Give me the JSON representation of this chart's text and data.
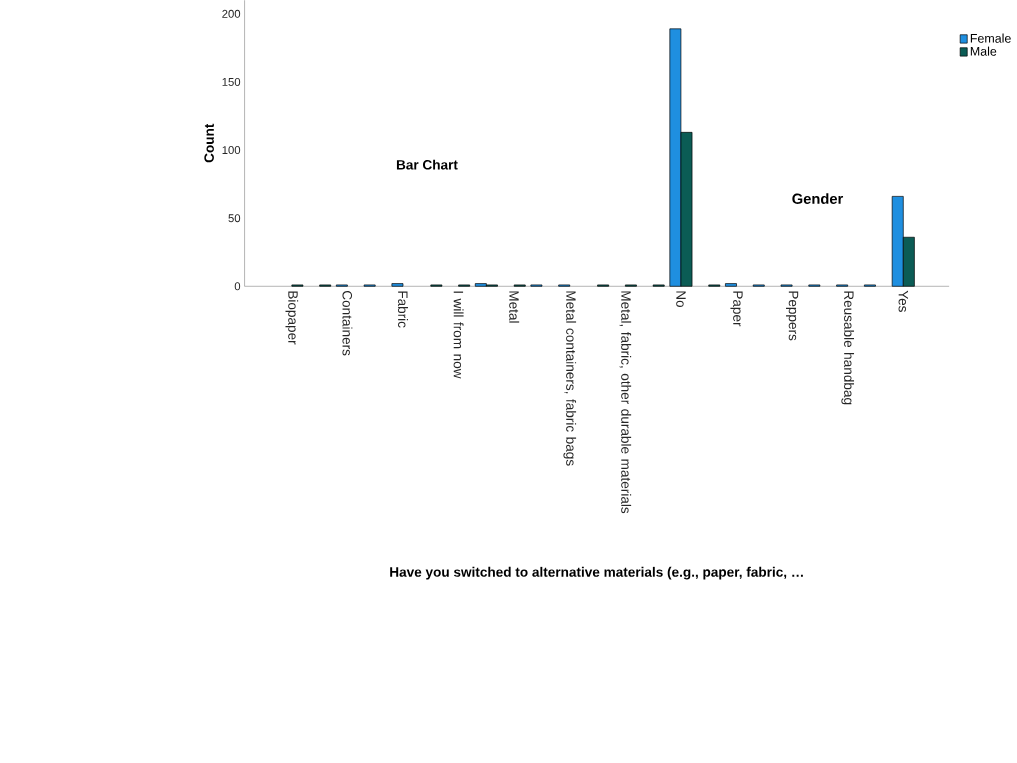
{
  "chart_data": {
    "type": "bar",
    "title": "Bar Chart",
    "xlabel": "Have you switched to alternative materials (e.g., paper, fabric, …",
    "ylabel": "Count",
    "legend_title": "Gender",
    "categories": [
      "Biopaper",
      null,
      "Containers",
      null,
      "Fabric",
      null,
      "I will from now",
      null,
      "Metal",
      null,
      "Metal containers, fabric bags",
      null,
      "Metal, fabric, other durable materials",
      null,
      "No",
      null,
      "Paper",
      null,
      "Peppers",
      null,
      "Reusable handbag",
      null,
      "Yes"
    ],
    "series": [
      {
        "name": "Female",
        "color": "#1f8fe0",
        "values": [
          null,
          null,
          1,
          1,
          2,
          null,
          null,
          2,
          null,
          1,
          1,
          null,
          null,
          null,
          189,
          null,
          2,
          1,
          1,
          1,
          1,
          1,
          66
        ]
      },
      {
        "name": "Male",
        "color": "#0b5c55",
        "values": [
          1,
          1,
          null,
          null,
          null,
          1,
          1,
          1,
          1,
          null,
          null,
          1,
          1,
          1,
          113,
          1,
          null,
          null,
          null,
          null,
          null,
          null,
          36
        ]
      }
    ],
    "ylim": [
      0,
      210
    ],
    "yticks": [
      0,
      50,
      100,
      150,
      200
    ],
    "grid": false,
    "legend": "top right"
  }
}
